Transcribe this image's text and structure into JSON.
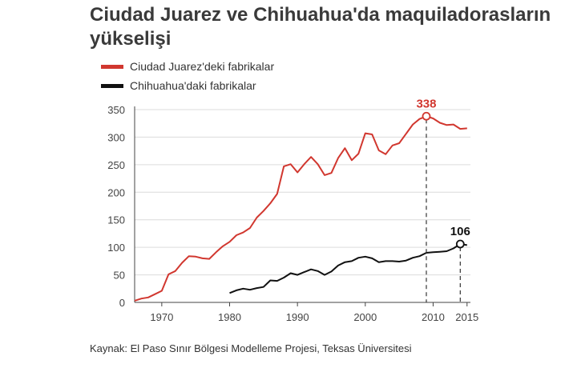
{
  "chart_data": {
    "type": "line",
    "title": "Ciudad Juarez ve Chihuahua'da maquiladorasların yükselişi",
    "xlabel": "",
    "ylabel": "",
    "xlim": [
      1966,
      2015.5
    ],
    "ylim": [
      0,
      350
    ],
    "yticks": [
      0,
      50,
      100,
      150,
      200,
      250,
      300,
      350
    ],
    "xticks": [
      1970,
      1980,
      1990,
      2000,
      2010,
      2015
    ],
    "legend_position": "top-left",
    "grid": "horizontal",
    "series": [
      {
        "name": "Ciudad Juarez'deki fabrikalar",
        "color": "#d1372f",
        "x": [
          1966,
          1967,
          1968,
          1969,
          1970,
          1971,
          1972,
          1973,
          1974,
          1975,
          1976,
          1977,
          1978,
          1979,
          1980,
          1981,
          1982,
          1983,
          1984,
          1985,
          1986,
          1987,
          1988,
          1989,
          1990,
          1991,
          1992,
          1993,
          1994,
          1995,
          1996,
          1997,
          1998,
          1999,
          2000,
          2001,
          2002,
          2003,
          2004,
          2005,
          2006,
          2007,
          2008,
          2009,
          2010,
          2011,
          2012,
          2013,
          2014,
          2015
        ],
        "values": [
          3,
          7,
          9,
          15,
          21,
          51,
          57,
          72,
          84,
          83,
          80,
          79,
          91,
          102,
          110,
          122,
          127,
          135,
          154,
          166,
          180,
          197,
          247,
          251,
          236,
          251,
          264,
          251,
          231,
          235,
          262,
          280,
          258,
          270,
          307,
          305,
          276,
          269,
          285,
          289,
          306,
          323,
          333,
          338,
          334,
          326,
          322,
          323,
          315,
          316
        ]
      },
      {
        "name": "Chihuahua'daki fabrikalar",
        "color": "#111111",
        "x": [
          1980,
          1981,
          1982,
          1983,
          1984,
          1985,
          1986,
          1987,
          1988,
          1989,
          1990,
          1991,
          1992,
          1993,
          1994,
          1995,
          1996,
          1997,
          1998,
          1999,
          2000,
          2001,
          2002,
          2003,
          2004,
          2005,
          2006,
          2007,
          2008,
          2009,
          2010,
          2011,
          2012,
          2013,
          2014,
          2015
        ],
        "values": [
          17,
          22,
          25,
          23,
          26,
          28,
          40,
          39,
          45,
          53,
          50,
          55,
          60,
          57,
          50,
          56,
          67,
          73,
          75,
          81,
          83,
          80,
          73,
          75,
          75,
          74,
          76,
          81,
          84,
          90,
          91,
          92,
          93,
          98,
          106,
          104
        ]
      }
    ],
    "annotations": [
      {
        "series": 0,
        "x": 2009,
        "value": 338,
        "label": "338"
      },
      {
        "series": 1,
        "x": 2014,
        "value": 106,
        "label": "106"
      }
    ]
  },
  "source_text": "Kaynak: El Paso Sınır Bölgesi Modelleme Projesi, Teksas Üniversitesi"
}
